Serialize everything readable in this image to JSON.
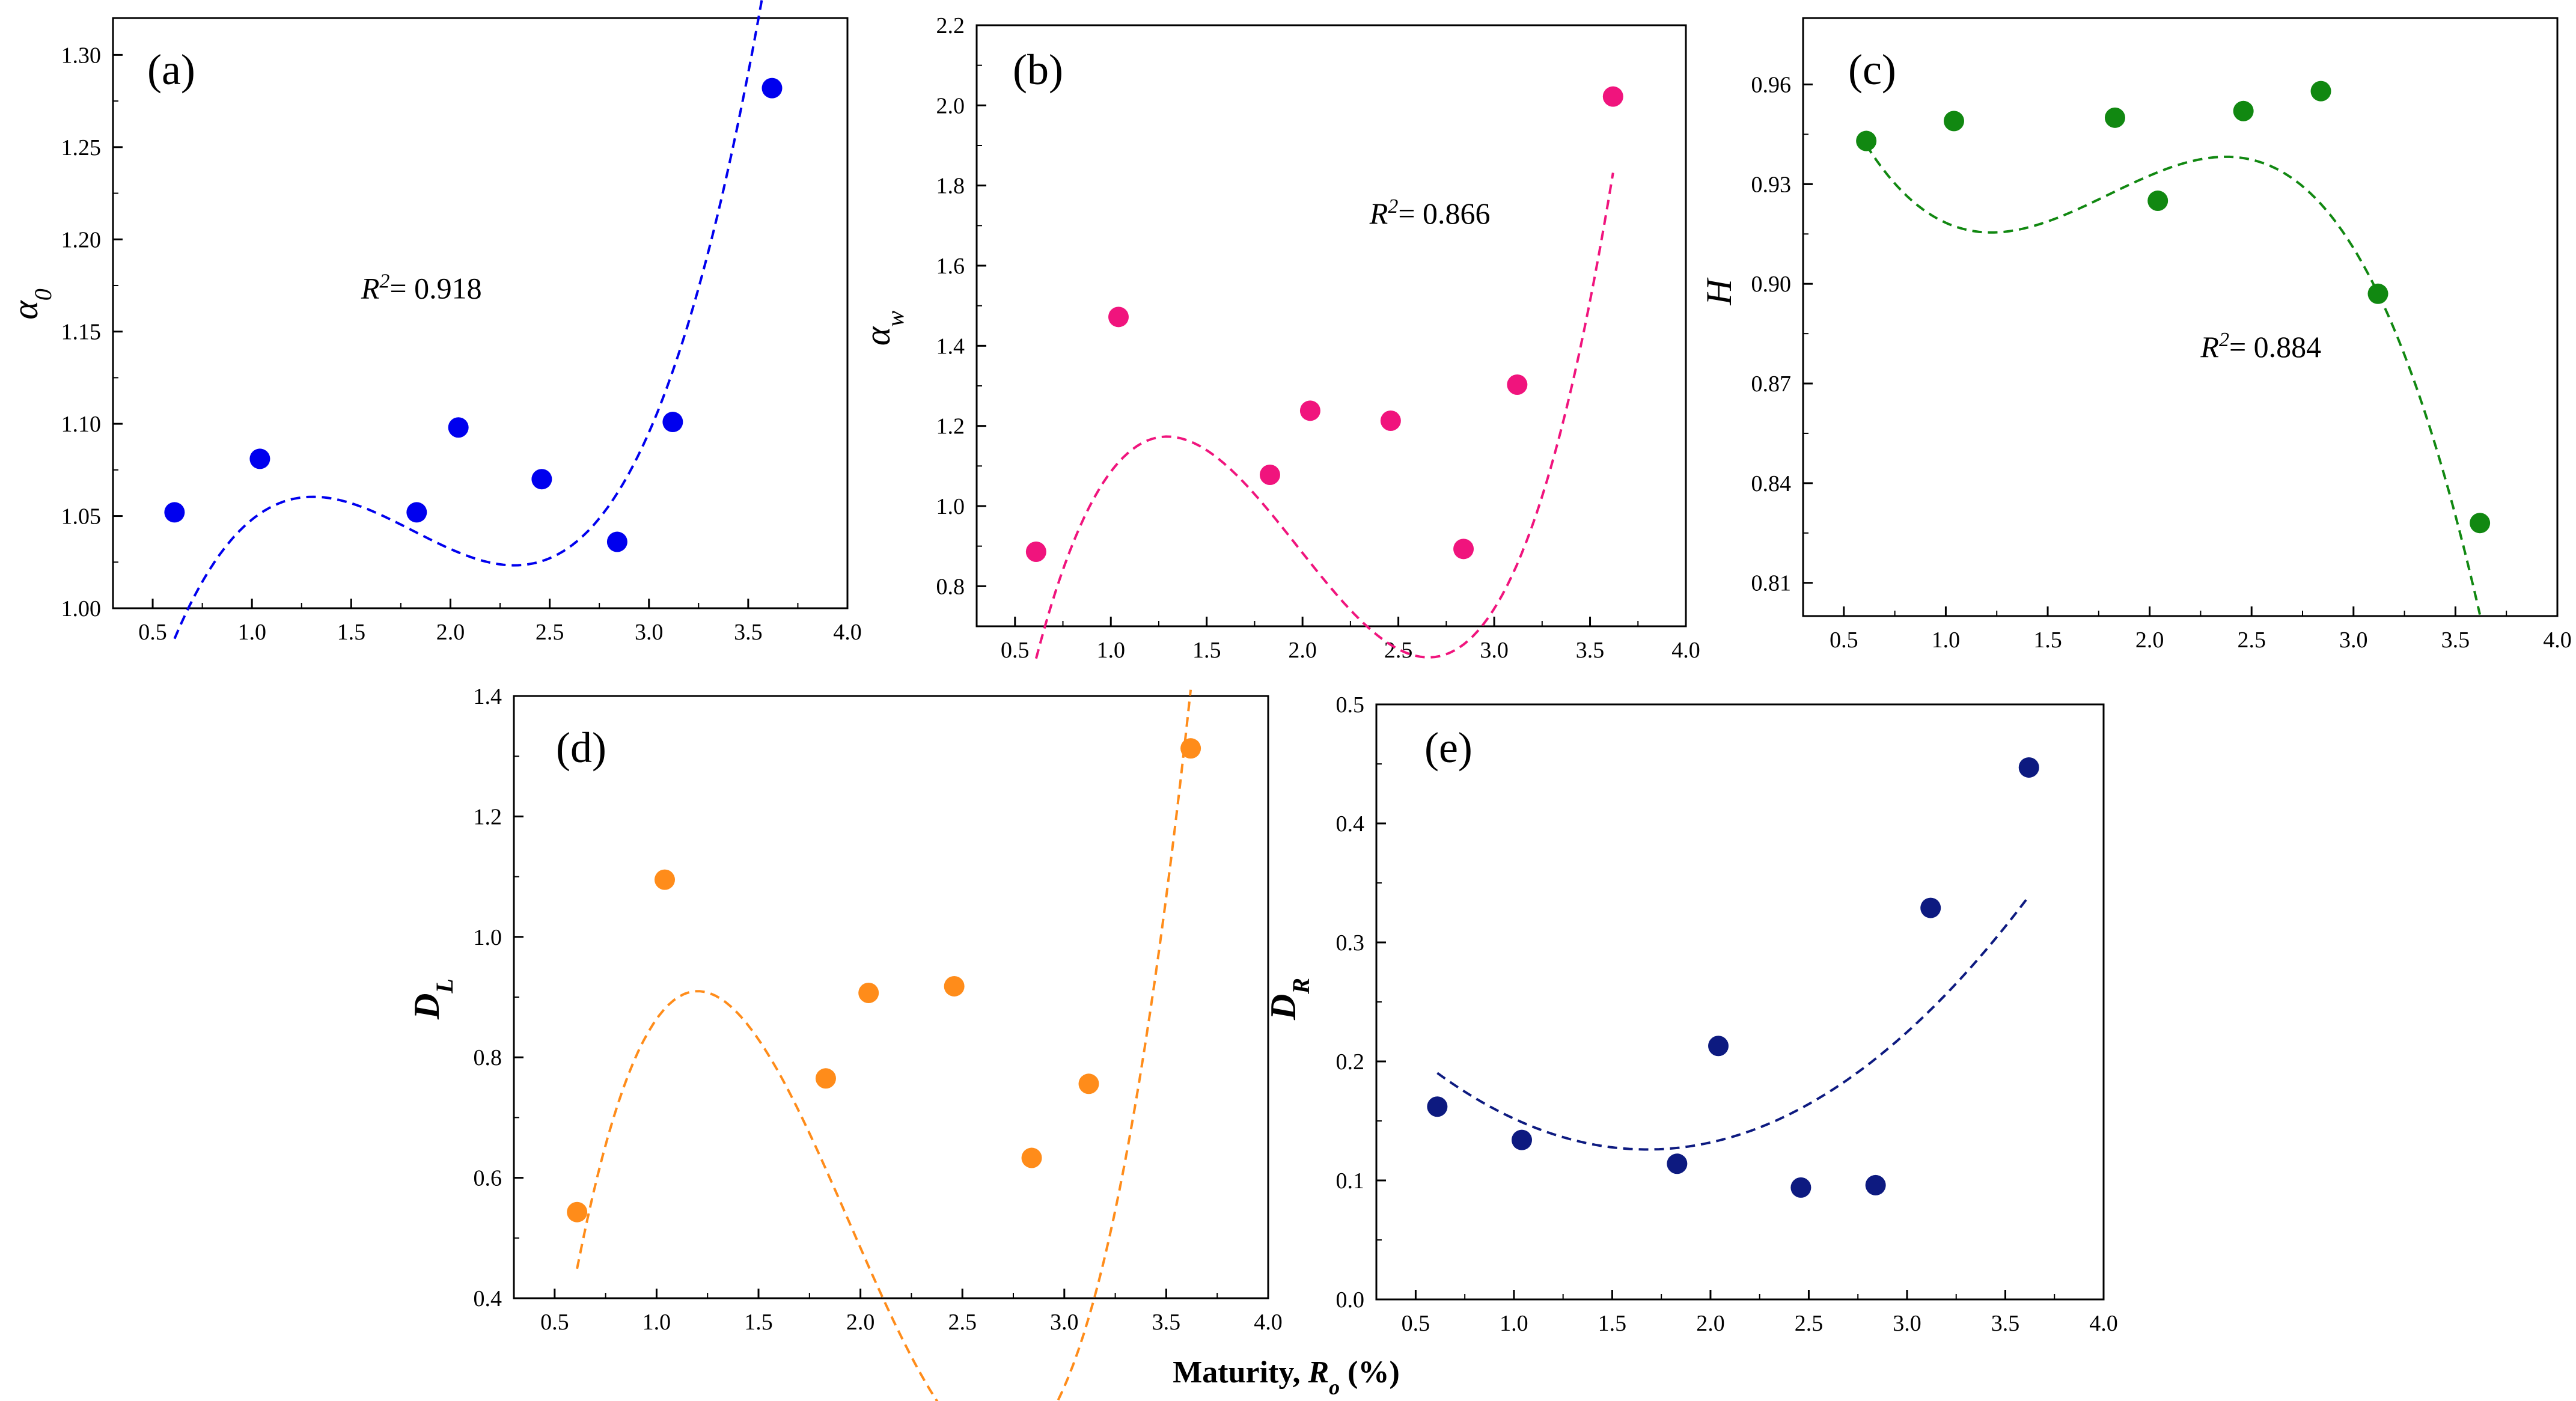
{
  "chart_data": [
    {
      "id": "a",
      "type": "scatter",
      "panel_label": "(a)",
      "ylabel": "α",
      "ylabel_sub": "0",
      "ylim": [
        1.0,
        1.32
      ],
      "yticks": [
        1.0,
        1.05,
        1.1,
        1.15,
        1.2,
        1.25,
        1.3
      ],
      "ytick_labels": [
        "1.00",
        "1.05",
        "1.10",
        "1.15",
        "1.20",
        "1.25",
        "1.30"
      ],
      "xlim": [
        0.3,
        4.0
      ],
      "xticks": [
        0.5,
        1.0,
        1.5,
        2.0,
        2.5,
        3.0,
        3.5,
        4.0
      ],
      "xtick_labels": [
        "0.5",
        "1.0",
        "1.5",
        "2.0",
        "2.5",
        "3.0",
        "3.5",
        "4.0"
      ],
      "x": [
        0.61,
        1.04,
        1.83,
        2.04,
        2.46,
        2.84,
        3.12,
        3.62
      ],
      "y": [
        1.052,
        1.081,
        1.052,
        1.098,
        1.07,
        1.036,
        1.101,
        1.282
      ],
      "fit_poly": [
        0.71586,
        0.64879,
        -0.38779,
        0.07123
      ],
      "fit_range": [
        0.61,
        3.62
      ],
      "r2_label": "R",
      "r2_sup": "2",
      "r2_value": "= 0.918",
      "r2_at": [
        1.55,
        1.168
      ],
      "color": "#0000ee"
    },
    {
      "id": "b",
      "type": "scatter",
      "panel_label": "(b)",
      "ylabel": "α",
      "ylabel_sub": "w",
      "ylim": [
        0.7,
        2.2
      ],
      "yticks": [
        0.8,
        1.0,
        1.2,
        1.4,
        1.6,
        1.8,
        2.0,
        2.2
      ],
      "ytick_labels": [
        "0.8",
        "1.0",
        "1.2",
        "1.4",
        "1.6",
        "1.8",
        "2.0",
        "2.2"
      ],
      "xlim": [
        0.3,
        4.0
      ],
      "xticks": [
        0.5,
        1.0,
        1.5,
        2.0,
        2.5,
        3.0,
        3.5,
        4.0
      ],
      "xtick_labels": [
        "0.5",
        "1.0",
        "1.5",
        "2.0",
        "2.5",
        "3.0",
        "3.5",
        "4.0"
      ],
      "x": [
        0.61,
        1.04,
        1.83,
        2.04,
        2.46,
        2.84,
        3.12,
        3.62
      ],
      "y": [
        0.886,
        1.472,
        1.078,
        1.238,
        1.213,
        0.893,
        1.303,
        2.022
      ],
      "fit_poly": [
        -1.2536,
        4.4788,
        -2.5736,
        0.4342
      ],
      "fit_range": [
        0.61,
        3.62
      ],
      "r2_label": "R",
      "r2_sup": "2",
      "r2_value": "= 0.866",
      "r2_at": [
        2.35,
        1.705
      ],
      "color": "#f0147d"
    },
    {
      "id": "c",
      "type": "scatter",
      "panel_label": "(c)",
      "ylabel": "H",
      "ylabel_sub": "",
      "ylim": [
        0.8,
        0.98
      ],
      "yticks": [
        0.81,
        0.84,
        0.87,
        0.9,
        0.93,
        0.96
      ],
      "ytick_labels": [
        "0.81",
        "0.84",
        "0.87",
        "0.90",
        "0.93",
        "0.96"
      ],
      "xlim": [
        0.3,
        4.0
      ],
      "xticks": [
        0.5,
        1.0,
        1.5,
        2.0,
        2.5,
        3.0,
        3.5,
        4.0
      ],
      "xtick_labels": [
        "0.5",
        "1.0",
        "1.5",
        "2.0",
        "2.5",
        "3.0",
        "3.5",
        "4.0"
      ],
      "x": [
        0.61,
        1.04,
        1.83,
        2.04,
        2.46,
        2.84,
        3.12,
        3.62
      ],
      "y": [
        0.943,
        0.949,
        0.95,
        0.925,
        0.952,
        0.958,
        0.897,
        0.828
      ],
      "fit_poly": [
        1.0474,
        -0.26042,
        0.16127,
        -0.029883
      ],
      "fit_range": [
        0.61,
        3.62
      ],
      "r2_label": "R",
      "r2_sup": "2",
      "r2_value": "= 0.884",
      "r2_at": [
        2.25,
        0.878
      ],
      "color": "#118811"
    },
    {
      "id": "d",
      "type": "scatter",
      "panel_label": "(d)",
      "ylabel": "D",
      "ylabel_sub": "L",
      "ylim": [
        0.4,
        1.4
      ],
      "yticks": [
        0.4,
        0.6,
        0.8,
        1.0,
        1.2,
        1.4
      ],
      "ytick_labels": [
        "0.4",
        "0.6",
        "0.8",
        "1.0",
        "1.2",
        "1.4"
      ],
      "xlim": [
        0.3,
        4.0
      ],
      "xticks": [
        0.5,
        1.0,
        1.5,
        2.0,
        2.5,
        3.0,
        3.5,
        4.0
      ],
      "xtick_labels": [
        "0.5",
        "1.0",
        "1.5",
        "2.0",
        "2.5",
        "3.0",
        "3.5",
        "4.0"
      ],
      "x": [
        0.61,
        1.04,
        1.83,
        2.04,
        2.46,
        2.84,
        3.12,
        3.62
      ],
      "y": [
        0.543,
        1.095,
        0.765,
        0.907,
        0.918,
        0.633,
        0.756,
        1.313
      ],
      "fit_poly": [
        -1.4013,
        4.5189,
        -2.7196,
        0.4657
      ],
      "fit_range": [
        0.61,
        3.62
      ],
      "xlabel_text": "Maturity, ",
      "xlabel_var": "R",
      "xlabel_sub": "o",
      "xlabel_unit": " (%)",
      "color": "#ff8c1a"
    },
    {
      "id": "e",
      "type": "scatter",
      "panel_label": "(e)",
      "ylabel": "D",
      "ylabel_sub": "R",
      "ylim": [
        0.0,
        0.5
      ],
      "yticks": [
        0.0,
        0.1,
        0.2,
        0.3,
        0.4,
        0.5
      ],
      "ytick_labels": [
        "0.0",
        "0.1",
        "0.2",
        "0.3",
        "0.4",
        "0.5"
      ],
      "xlim": [
        0.3,
        4.0
      ],
      "xticks": [
        0.5,
        1.0,
        1.5,
        2.0,
        2.5,
        3.0,
        3.5,
        4.0
      ],
      "xtick_labels": [
        "0.5",
        "1.0",
        "1.5",
        "2.0",
        "2.5",
        "3.0",
        "3.5",
        "4.0"
      ],
      "x": [
        0.61,
        1.04,
        1.83,
        2.04,
        2.46,
        2.84,
        3.12,
        3.62
      ],
      "y": [
        0.162,
        0.134,
        0.114,
        0.213,
        0.094,
        0.096,
        0.329,
        0.447
      ],
      "fit_poly": [
        0.28474,
        -0.18924,
        0.056405,
        0
      ],
      "fit_range": [
        0.61,
        3.62
      ],
      "color": "#0d1a80"
    }
  ]
}
